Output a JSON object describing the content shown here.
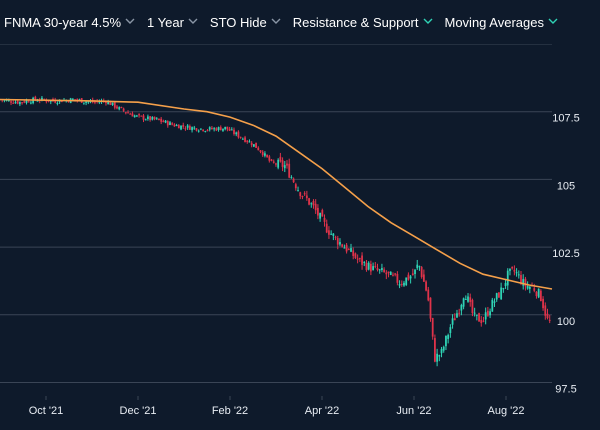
{
  "toolbar": {
    "items": [
      {
        "label": "FNMA 30-year 4.5%",
        "chevron_color": "#8a96a6"
      },
      {
        "label": "1 Year",
        "chevron_color": "#8a96a6"
      },
      {
        "label": "STO Hide",
        "chevron_color": "#8a96a6"
      },
      {
        "label": "Resistance & Support",
        "chevron_color": "#2fd3b5"
      },
      {
        "label": "Moving Averages",
        "chevron_color": "#2fd3b5"
      }
    ]
  },
  "colors": {
    "background": "#0e1a2b",
    "grid": "#3a4556",
    "up": "#2fd3b5",
    "down": "#e0334a",
    "moving_average": "#f5a04a",
    "axis_text": "#e8edf3"
  },
  "chart_data": {
    "type": "candlestick",
    "x_ticks": [
      "Oct '21",
      "Dec '21",
      "Feb '22",
      "Apr '22",
      "Jun '22",
      "Aug '22"
    ],
    "x_tick_months": [
      1.0,
      3.0,
      5.0,
      7.0,
      9.0,
      11.0
    ],
    "y_ticks": [
      97.5,
      100,
      102.5,
      105,
      107.5
    ],
    "ylim": [
      97.0,
      110.0
    ],
    "xlim": [
      0.0,
      12.0
    ],
    "grid": "horizontal",
    "price_path": [
      [
        0.0,
        107.95
      ],
      [
        0.4,
        107.85
      ],
      [
        0.8,
        107.95
      ],
      [
        1.2,
        107.9
      ],
      [
        1.6,
        107.95
      ],
      [
        2.0,
        107.85
      ],
      [
        2.3,
        107.9
      ],
      [
        2.6,
        107.6
      ],
      [
        3.0,
        107.3
      ],
      [
        3.4,
        107.2
      ],
      [
        3.8,
        107.0
      ],
      [
        4.2,
        106.9
      ],
      [
        4.5,
        106.85
      ],
      [
        4.9,
        106.9
      ],
      [
        5.2,
        106.6
      ],
      [
        5.5,
        106.3
      ],
      [
        5.7,
        106.0
      ],
      [
        5.9,
        105.6
      ],
      [
        6.2,
        105.5
      ],
      [
        6.5,
        104.6
      ],
      [
        6.8,
        104.0
      ],
      [
        7.1,
        103.2
      ],
      [
        7.3,
        102.8
      ],
      [
        7.5,
        102.5
      ],
      [
        7.8,
        102.0
      ],
      [
        8.1,
        101.7
      ],
      [
        8.4,
        101.5
      ],
      [
        8.7,
        101.2
      ],
      [
        9.0,
        101.5
      ],
      [
        9.1,
        101.9
      ],
      [
        9.3,
        100.7
      ],
      [
        9.45,
        98.4
      ],
      [
        9.6,
        98.6
      ],
      [
        9.8,
        99.6
      ],
      [
        10.0,
        100.3
      ],
      [
        10.1,
        100.9
      ],
      [
        10.3,
        99.9
      ],
      [
        10.5,
        99.8
      ],
      [
        10.7,
        100.4
      ],
      [
        10.9,
        100.9
      ],
      [
        11.05,
        101.5
      ],
      [
        11.2,
        101.6
      ],
      [
        11.4,
        101.1
      ],
      [
        11.6,
        101.0
      ],
      [
        11.75,
        100.7
      ],
      [
        11.9,
        99.8
      ],
      [
        12.0,
        99.65
      ]
    ],
    "moving_average": [
      [
        0.0,
        107.95
      ],
      [
        2.0,
        107.9
      ],
      [
        3.0,
        107.85
      ],
      [
        4.0,
        107.6
      ],
      [
        4.5,
        107.5
      ],
      [
        5.0,
        107.3
      ],
      [
        5.5,
        107.0
      ],
      [
        6.0,
        106.6
      ],
      [
        6.5,
        106.0
      ],
      [
        7.0,
        105.4
      ],
      [
        7.5,
        104.7
      ],
      [
        8.0,
        104.0
      ],
      [
        8.5,
        103.4
      ],
      [
        9.0,
        102.9
      ],
      [
        9.5,
        102.4
      ],
      [
        10.0,
        101.9
      ],
      [
        10.5,
        101.5
      ],
      [
        11.0,
        101.3
      ],
      [
        11.5,
        101.1
      ],
      [
        12.0,
        100.95
      ]
    ]
  }
}
